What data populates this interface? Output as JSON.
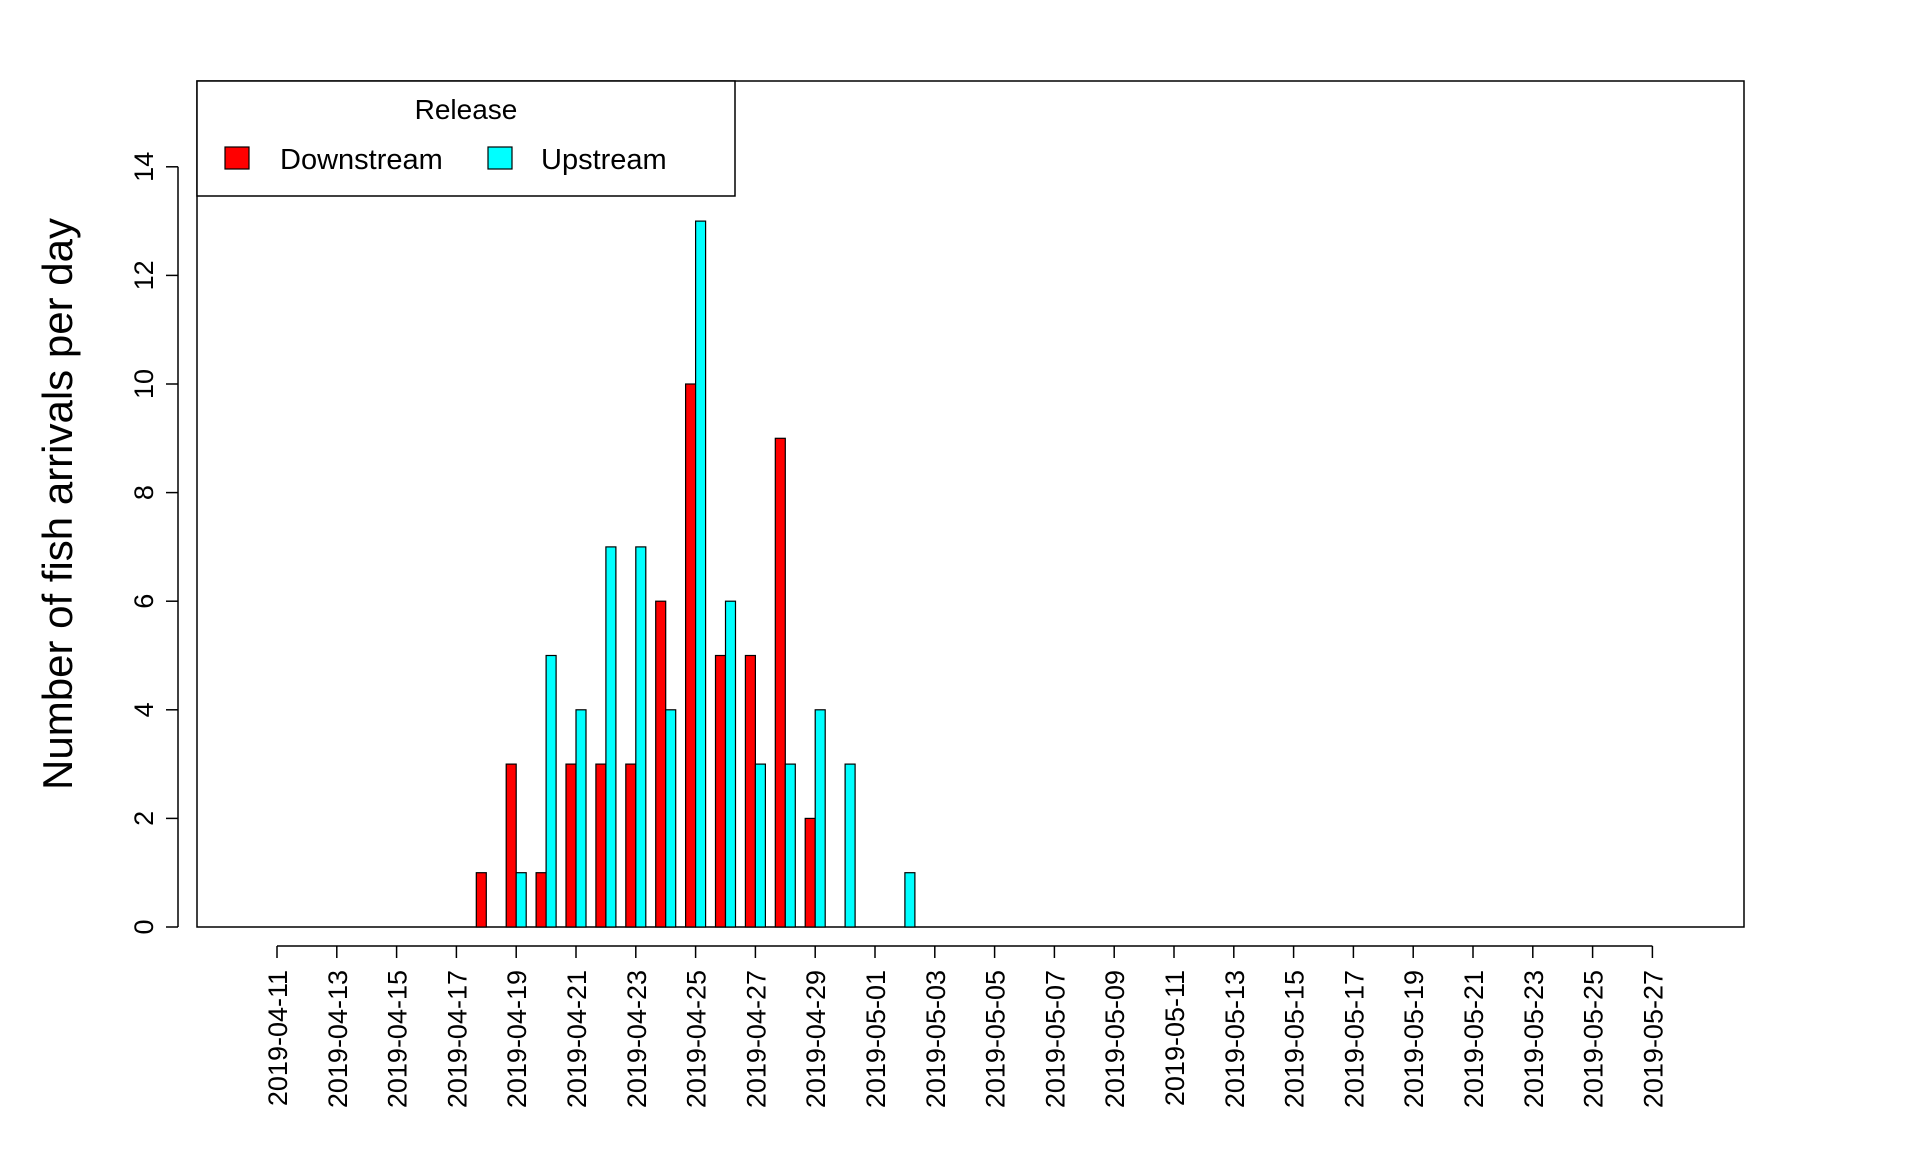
{
  "chart_data": {
    "type": "bar",
    "ylabel": "Number of fish arrivals per day",
    "xlabel": "",
    "ylim": [
      0,
      15.5
    ],
    "yticks": [
      0,
      2,
      4,
      6,
      8,
      10,
      12,
      14
    ],
    "grid": false,
    "legend_position": "top-left",
    "categories": [
      "2019-04-11",
      "2019-04-12",
      "2019-04-13",
      "2019-04-14",
      "2019-04-15",
      "2019-04-16",
      "2019-04-17",
      "2019-04-18",
      "2019-04-19",
      "2019-04-20",
      "2019-04-21",
      "2019-04-22",
      "2019-04-23",
      "2019-04-24",
      "2019-04-25",
      "2019-04-26",
      "2019-04-27",
      "2019-04-28",
      "2019-04-29",
      "2019-04-30",
      "2019-05-01",
      "2019-05-02",
      "2019-05-03",
      "2019-05-04",
      "2019-05-05",
      "2019-05-06",
      "2019-05-07",
      "2019-05-08",
      "2019-05-09",
      "2019-05-10",
      "2019-05-11",
      "2019-05-12",
      "2019-05-13",
      "2019-05-14",
      "2019-05-15",
      "2019-05-16",
      "2019-05-17",
      "2019-05-18",
      "2019-05-19",
      "2019-05-20",
      "2019-05-21",
      "2019-05-22",
      "2019-05-23",
      "2019-05-24",
      "2019-05-25",
      "2019-05-26",
      "2019-05-27"
    ],
    "xtick_labels": [
      "2019-04-11",
      "2019-04-13",
      "2019-04-15",
      "2019-04-17",
      "2019-04-19",
      "2019-04-21",
      "2019-04-23",
      "2019-04-25",
      "2019-04-27",
      "2019-04-29",
      "2019-05-01",
      "2019-05-03",
      "2019-05-05",
      "2019-05-07",
      "2019-05-09",
      "2019-05-11",
      "2019-05-13",
      "2019-05-15",
      "2019-05-17",
      "2019-05-19",
      "2019-05-21",
      "2019-05-23",
      "2019-05-25",
      "2019-05-27"
    ],
    "legend": {
      "title": "Release"
    },
    "series": [
      {
        "name": "Downstream",
        "color": "#ff0000",
        "values": [
          0,
          0,
          0,
          0,
          0,
          0,
          0,
          1,
          3,
          1,
          3,
          3,
          3,
          6,
          10,
          5,
          5,
          9,
          2,
          0,
          0,
          0,
          0,
          0,
          0,
          0,
          0,
          0,
          0,
          0,
          0,
          0,
          0,
          0,
          0,
          0,
          0,
          0,
          0,
          0,
          0,
          0,
          0,
          0,
          0,
          0,
          0
        ]
      },
      {
        "name": "Upstream",
        "color": "#00ffff",
        "values": [
          0,
          0,
          0,
          0,
          0,
          0,
          0,
          0,
          1,
          5,
          4,
          7,
          7,
          4,
          13,
          6,
          3,
          3,
          4,
          3,
          0,
          1,
          0,
          0,
          0,
          0,
          0,
          0,
          0,
          0,
          0,
          0,
          0,
          0,
          0,
          0,
          0,
          0,
          0,
          0,
          0,
          0,
          0,
          0,
          0,
          0,
          0
        ]
      }
    ]
  }
}
